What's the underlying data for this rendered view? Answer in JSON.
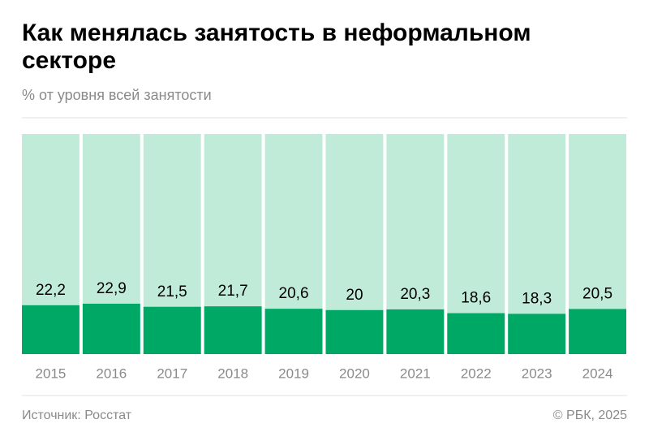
{
  "chart_data": {
    "type": "bar",
    "title": "Как менялась занятость в неформальном секторе",
    "subtitle": "% от уровня всей занятости",
    "categories": [
      "2015",
      "2016",
      "2017",
      "2018",
      "2019",
      "2020",
      "2021",
      "2022",
      "2023",
      "2024"
    ],
    "values": [
      22.2,
      22.9,
      21.5,
      21.7,
      20.6,
      20,
      20.3,
      18.6,
      18.3,
      20.5
    ],
    "value_labels": [
      "22,2",
      "22,9",
      "21,5",
      "21,7",
      "20,6",
      "20",
      "20,3",
      "18,6",
      "18,3",
      "20,5"
    ],
    "color": "#00a866",
    "track_color": "#c0ebd9",
    "ylim": [
      0,
      100
    ],
    "source": "Источник: Росстат",
    "credit": "© РБК, 2025"
  }
}
